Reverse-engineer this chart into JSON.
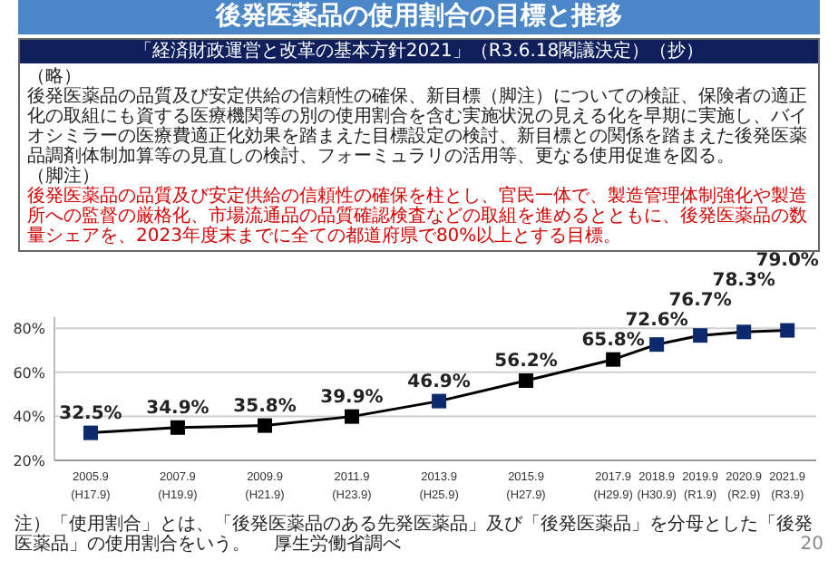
{
  "chart_data": {
    "type": "line",
    "title": "後発医薬品の使用割合の目標と推移",
    "subtitle": "「経済財政運営と改革の基本方針2021」（R3.6.18閣議決定）（抄）",
    "annotations": [
      "（略）",
      "後発医薬品の品質及び安定供給の信頼性の確保、新目標（脚注）についての検証、保険者の適正化の取組にも資する医療機関等の別の使用割合を含む実施状況の見える化を早期に実施し、バイオシミラーの医療費適正化効果を踏まえた目標設定の検討、新目標との関係を踏まえた後発医薬品調剤体制加算等の見直しの検討、フォーミュラリの活用等、更なる使用促進を図る。",
      "（脚注）",
      "後発医薬品の品質及び安定供給の信頼性の確保を柱とし、官民一体で、製造管理体制強化や製造所への監督の厳格化、市場流通品の品質確認検査などの取組を進めるとともに、後発医薬品の数量シェアを、2023年度末までに全ての都道府県で80%以上とする目標。",
      "注）「使用割合」とは、「後発医薬品のある先発医薬品」及び「後発医薬品」を分母とした「後発医薬品」の使用割合をいう。",
      "厚生労働省調べ",
      "20"
    ],
    "x": [
      "2005-09",
      "2007-09",
      "2009-09",
      "2011-09",
      "2013-09",
      "2015-09",
      "2017-09",
      "2018-09",
      "2019-09",
      "2020-09",
      "2021-09"
    ],
    "series": [
      {
        "color": "#000000",
        "colors": [
          "#0e2a6e",
          "#000000",
          "#000000",
          "#000000",
          "#0e2a6e",
          "#000000",
          "#000000",
          "#0e2a6e",
          "#0e2a6e",
          "#0e2a6e",
          "#0e2a6e"
        ],
        "values": [
          32.5,
          34.9,
          35.8,
          39.9,
          46.9,
          56.2,
          65.8,
          72.6,
          76.7,
          78.3,
          79.0
        ],
        "value_labels": [
          "32.5%",
          "34.9%",
          "35.8%",
          "39.9%",
          "46.9%",
          "56.2%",
          "65.8%",
          "72.6%",
          "76.7%",
          "78.3%",
          "79.0%"
        ]
      }
    ],
    "xlim": [
      "2004-11",
      "2022-05"
    ],
    "xticks": [
      {
        "value": "2005-09",
        "label": "2005.9\n(H17.9)"
      },
      {
        "value": "2007-09",
        "label": "2007.9\n(H19.9)"
      },
      {
        "value": "2009-09",
        "label": "2009.9\n(H21.9)"
      },
      {
        "value": "2011-09",
        "label": "2011.9\n(H23.9)"
      },
      {
        "value": "2013-09",
        "label": "2013.9\n(H25.9)"
      },
      {
        "value": "2015-09",
        "label": "2015.9\n(H27.9)"
      },
      {
        "value": "2017-09",
        "label": "2017.9\n(H29.9)"
      },
      {
        "value": "2018-09",
        "label": "2018.9\n(H30.9)"
      },
      {
        "value": "2019-09",
        "label": "2019.9\n(R1.9)"
      },
      {
        "value": "2020-09",
        "label": "2020.9\n(R2.9)"
      },
      {
        "value": "2021-09",
        "label": "2021.9\n(R3.9)"
      }
    ],
    "ylim": [
      20,
      85
    ],
    "yticks": [
      {
        "value": 20,
        "label": "20%"
      },
      {
        "value": 40,
        "label": "40%"
      },
      {
        "value": 60,
        "label": "60%"
      },
      {
        "value": 80,
        "label": "80%"
      }
    ],
    "grid": "y",
    "marker": "square",
    "line_style": "solid"
  }
}
